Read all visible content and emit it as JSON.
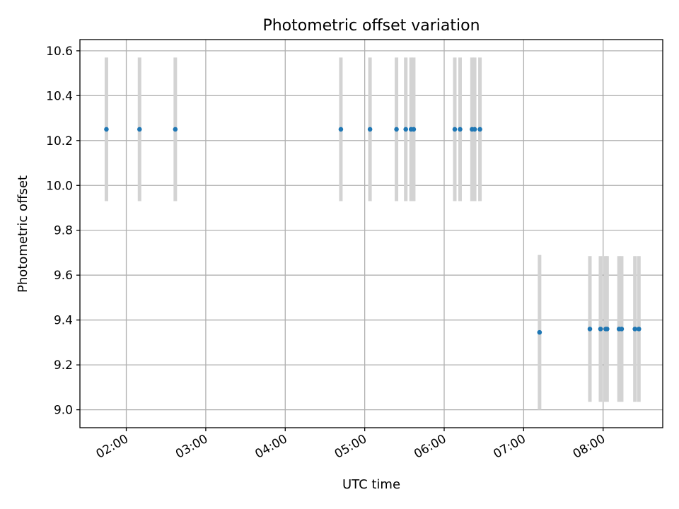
{
  "chart_data": {
    "type": "scatter",
    "title": "Photometric offset variation",
    "xlabel": "UTC time",
    "ylabel": "Photometric offset",
    "x_is_time": true,
    "xlim": [
      "01:25",
      "08:45"
    ],
    "ylim": [
      8.92,
      10.65
    ],
    "xticks": [
      "02:00",
      "03:00",
      "04:00",
      "05:00",
      "06:00",
      "07:00",
      "08:00"
    ],
    "yticks": [
      9.0,
      9.2,
      9.4,
      9.6,
      9.8,
      10.0,
      10.2,
      10.4,
      10.6
    ],
    "grid": true,
    "marker_color": "#1f77b4",
    "errorbar_color": "#d3d3d3",
    "points": [
      {
        "time": "01:45",
        "y": 10.25,
        "err": 0.32
      },
      {
        "time": "02:10",
        "y": 10.25,
        "err": 0.32
      },
      {
        "time": "02:37",
        "y": 10.25,
        "err": 0.32
      },
      {
        "time": "04:42",
        "y": 10.25,
        "err": 0.32
      },
      {
        "time": "05:04",
        "y": 10.25,
        "err": 0.32
      },
      {
        "time": "05:24",
        "y": 10.25,
        "err": 0.32
      },
      {
        "time": "05:31",
        "y": 10.25,
        "err": 0.32
      },
      {
        "time": "05:35",
        "y": 10.25,
        "err": 0.32
      },
      {
        "time": "05:37",
        "y": 10.25,
        "err": 0.32
      },
      {
        "time": "06:08",
        "y": 10.25,
        "err": 0.32
      },
      {
        "time": "06:12",
        "y": 10.25,
        "err": 0.32
      },
      {
        "time": "06:21",
        "y": 10.25,
        "err": 0.32
      },
      {
        "time": "06:23",
        "y": 10.25,
        "err": 0.32
      },
      {
        "time": "06:27",
        "y": 10.25,
        "err": 0.32
      },
      {
        "time": "07:12",
        "y": 9.345,
        "err": 0.345
      },
      {
        "time": "07:50",
        "y": 9.36,
        "err": 0.325
      },
      {
        "time": "07:58",
        "y": 9.36,
        "err": 0.325
      },
      {
        "time": "08:02",
        "y": 9.36,
        "err": 0.325
      },
      {
        "time": "08:03",
        "y": 9.36,
        "err": 0.325
      },
      {
        "time": "08:12",
        "y": 9.36,
        "err": 0.325
      },
      {
        "time": "08:14",
        "y": 9.36,
        "err": 0.325
      },
      {
        "time": "08:24",
        "y": 9.36,
        "err": 0.325
      },
      {
        "time": "08:27",
        "y": 9.36,
        "err": 0.325
      }
    ]
  }
}
